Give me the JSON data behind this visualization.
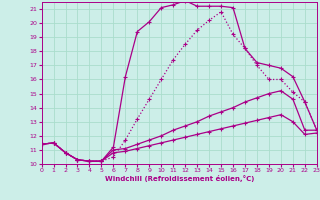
{
  "xlabel": "Windchill (Refroidissement éolien,°C)",
  "bg_color": "#cceee8",
  "line_color": "#aa0088",
  "grid_color": "#aaddcc",
  "xlim": [
    0,
    23
  ],
  "ylim": [
    10,
    21.5
  ],
  "yticks": [
    10,
    11,
    12,
    13,
    14,
    15,
    16,
    17,
    18,
    19,
    20,
    21
  ],
  "xticks": [
    0,
    1,
    2,
    3,
    4,
    5,
    6,
    7,
    8,
    9,
    10,
    11,
    12,
    13,
    14,
    15,
    16,
    17,
    18,
    19,
    20,
    21,
    22,
    23
  ],
  "curve_dotted_x": [
    0,
    1,
    2,
    3,
    4,
    5,
    6,
    7,
    8,
    9,
    10,
    11,
    12,
    13,
    14,
    15,
    16,
    17,
    18,
    19,
    20,
    21,
    22,
    23
  ],
  "curve_dotted_y": [
    11.4,
    11.5,
    10.8,
    10.3,
    10.2,
    10.2,
    10.5,
    11.7,
    13.2,
    14.6,
    16.0,
    17.4,
    18.5,
    19.5,
    20.2,
    20.8,
    19.2,
    18.2,
    17.0,
    16.0,
    16.0,
    15.1,
    14.4,
    12.4
  ],
  "curve_solid_x": [
    0,
    1,
    2,
    3,
    4,
    5,
    6,
    7,
    8,
    9,
    10,
    11,
    12,
    13,
    14,
    15,
    16,
    17,
    18,
    19,
    20,
    21,
    22,
    23
  ],
  "curve_solid_y": [
    11.4,
    11.5,
    10.8,
    10.3,
    10.2,
    10.2,
    11.2,
    16.2,
    19.4,
    20.1,
    21.1,
    21.3,
    21.6,
    21.2,
    21.2,
    21.2,
    21.1,
    18.2,
    17.2,
    17.0,
    16.8,
    16.2,
    14.4,
    12.4
  ],
  "curve_diag1_x": [
    0,
    1,
    2,
    3,
    4,
    5,
    6,
    7,
    8,
    9,
    10,
    11,
    12,
    13,
    14,
    15,
    16,
    17,
    18,
    19,
    20,
    21,
    22,
    23
  ],
  "curve_diag1_y": [
    11.4,
    11.5,
    10.8,
    10.3,
    10.2,
    10.2,
    11.0,
    11.1,
    11.4,
    11.7,
    12.0,
    12.4,
    12.7,
    13.0,
    13.4,
    13.7,
    14.0,
    14.4,
    14.7,
    15.0,
    15.2,
    14.6,
    12.4,
    12.4
  ],
  "curve_diag2_x": [
    0,
    1,
    2,
    3,
    4,
    5,
    6,
    7,
    8,
    9,
    10,
    11,
    12,
    13,
    14,
    15,
    16,
    17,
    18,
    19,
    20,
    21,
    22,
    23
  ],
  "curve_diag2_y": [
    11.4,
    11.5,
    10.8,
    10.3,
    10.2,
    10.2,
    10.8,
    10.9,
    11.1,
    11.3,
    11.5,
    11.7,
    11.9,
    12.1,
    12.3,
    12.5,
    12.7,
    12.9,
    13.1,
    13.3,
    13.5,
    13.0,
    12.1,
    12.2
  ]
}
